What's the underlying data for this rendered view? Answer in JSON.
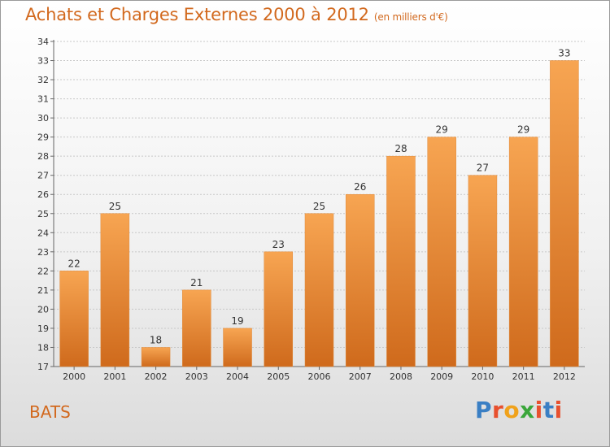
{
  "header": {
    "title": "Achats et Charges Externes 2000 à 2012",
    "subtitle": "(en milliers d'€)"
  },
  "footer": {
    "commune": "BATS",
    "logo": {
      "text": "Proxiti",
      "letter_colors": [
        "#3a7fc4",
        "#e8502e",
        "#f0a21b",
        "#3aa63a",
        "#e8502e",
        "#3a7fc4",
        "#e8502e"
      ]
    }
  },
  "colors": {
    "accent": "#d2691e",
    "bar_top": "#f7a552",
    "bar_bottom": "#cf6a1c"
  },
  "chart_data": {
    "type": "bar",
    "title": "Achats et Charges Externes 2000 à 2012",
    "subtitle": "(en milliers d'€)",
    "categories": [
      "2000",
      "2001",
      "2002",
      "2003",
      "2004",
      "2005",
      "2006",
      "2007",
      "2008",
      "2009",
      "2010",
      "2011",
      "2012"
    ],
    "values": [
      22,
      25,
      18,
      21,
      19,
      23,
      25,
      26,
      28,
      29,
      27,
      29,
      33
    ],
    "ylim": [
      17,
      34
    ],
    "yticks": [
      17,
      18,
      19,
      20,
      21,
      22,
      23,
      24,
      25,
      26,
      27,
      28,
      29,
      30,
      31,
      32,
      33,
      34
    ],
    "grid": true,
    "xlabel": "",
    "ylabel": ""
  }
}
